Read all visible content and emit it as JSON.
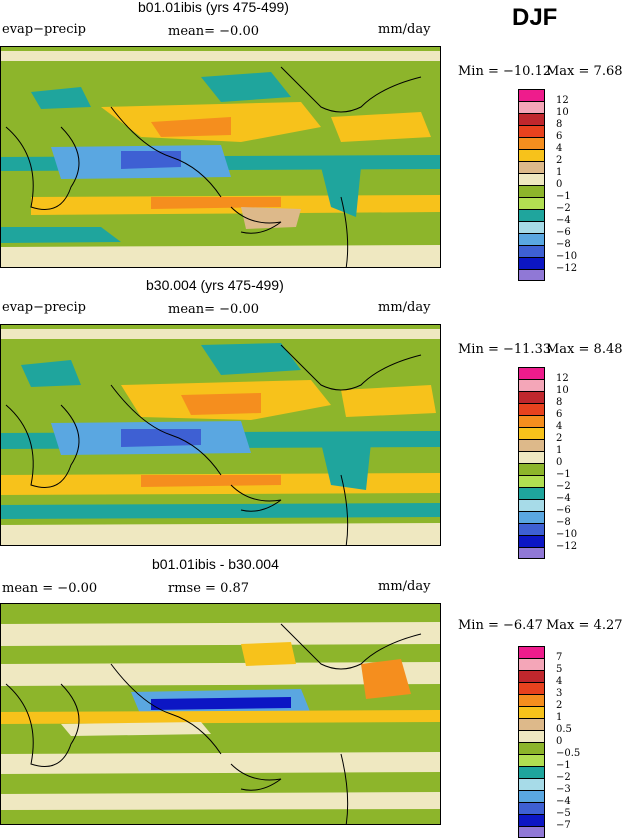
{
  "season": "DJF",
  "panels": [
    {
      "title": "b01.01ibis (yrs 475-499)",
      "left_label": "evap−precip",
      "center_label": "mean=  −0.00",
      "units": "mm/day",
      "min_text": "Min = −10.12",
      "max_text": "Max =   7.68"
    },
    {
      "title": "b30.004 (yrs 475-499)",
      "left_label": "evap−precip",
      "center_label": "mean=  −0.00",
      "units": "mm/day",
      "min_text": "Min = −11.33",
      "max_text": "Max =   8.48"
    },
    {
      "title": "b01.01ibis - b30.004",
      "left_label": "mean =  −0.00",
      "center_label": "rmse =   0.87",
      "units": "mm/day",
      "min_text": "Min =  −6.47",
      "max_text": "Max =   4.27"
    }
  ],
  "colorbars": {
    "abs_labels": [
      "12",
      "10",
      "8",
      "6",
      "4",
      "2",
      "1",
      "0",
      "−1",
      "−2",
      "−4",
      "−6",
      "−8",
      "−10",
      "−12"
    ],
    "diff_labels": [
      "7",
      "5",
      "4",
      "3",
      "2",
      "1",
      "0.5",
      "0",
      "−0.5",
      "−1",
      "−2",
      "−3",
      "−4",
      "−5",
      "−7"
    ],
    "colors": [
      "#ee1c8c",
      "#f4a6b8",
      "#c0272d",
      "#e8421e",
      "#f58e1e",
      "#f7c21b",
      "#ddb98a",
      "#efe8c1",
      "#8db52b",
      "#b2df52",
      "#1fa59d",
      "#a7dbe8",
      "#5aa7e1",
      "#3e60d3",
      "#0c16c4",
      "#9078d6"
    ]
  }
}
